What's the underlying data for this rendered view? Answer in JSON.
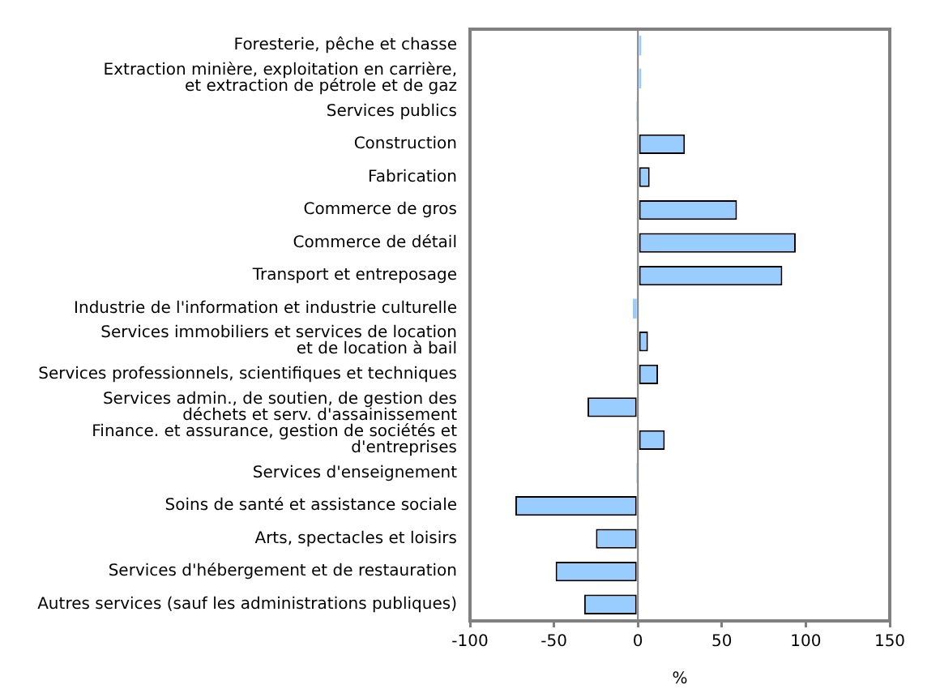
{
  "chart_data": {
    "type": "bar",
    "orientation": "horizontal",
    "categories": [
      "Foresterie, pêche et chasse",
      "Extraction minière, exploitation en carrière,\net extraction de pétrole et de gaz",
      "Services publics",
      "Construction",
      "Fabrication",
      "Commerce de gros",
      "Commerce de détail",
      "Transport et entreposage",
      "Industrie de l'information et industrie culturelle",
      "Services immobiliers et services de location\net de location à bail",
      "Services professionnels, scientifiques et techniques",
      "Services admin., de soutien, de gestion des\ndéchets et serv. d'assainissement",
      "Finance. et assurance, gestion de sociétés et\nd'entreprises",
      "Services d'enseignement",
      "Soins de santé et assistance sociale",
      "Arts, spectacles et loisirs",
      "Services d'hébergement et de restauration",
      "Autres services (sauf les administrations publiques)"
    ],
    "values": [
      2,
      2,
      -1,
      28,
      7,
      59,
      94,
      86,
      -3,
      6,
      12,
      -30,
      16,
      -1,
      -73,
      -25,
      -49,
      -32
    ],
    "color": "#99ccff",
    "xlabel": "%",
    "xlim": [
      -100,
      150
    ],
    "xticks": [
      -100,
      -50,
      0,
      50,
      100,
      150
    ],
    "ref_lines": [
      {
        "axis": "x",
        "value": 0,
        "color": "#808080"
      }
    ]
  }
}
